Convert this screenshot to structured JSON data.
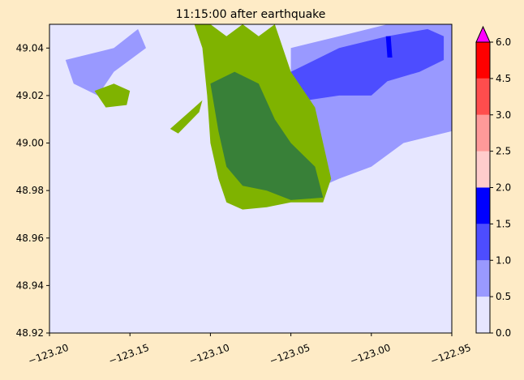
{
  "chart_data": {
    "type": "heatmap",
    "title": "11:15:00 after earthquake",
    "xlabel": "",
    "ylabel": "",
    "xlim": [
      -123.2,
      -122.95
    ],
    "ylim": [
      48.92,
      49.05
    ],
    "x_ticks": [
      -123.2,
      -123.15,
      -123.1,
      -123.05,
      -123.0,
      -122.95
    ],
    "x_tick_labels": [
      "−123.20",
      "−123.15",
      "−123.10",
      "−123.05",
      "−123.00",
      "−122.95"
    ],
    "y_ticks": [
      48.92,
      48.94,
      48.96,
      48.98,
      49.0,
      49.02,
      49.04
    ],
    "y_tick_labels": [
      "48.92",
      "48.94",
      "48.96",
      "48.98",
      "49.00",
      "49.02",
      "49.04"
    ],
    "grid": false,
    "background_color": "#e6e6ff",
    "land_colors": {
      "lowland": "#7fb300",
      "upland": "#388038"
    },
    "colorbar": {
      "levels": [
        0.0,
        0.5,
        1.0,
        1.5,
        2.0,
        2.5,
        3.0,
        4.5,
        6.0
      ],
      "level_labels": [
        "0.0",
        "0.5",
        "1.0",
        "1.5",
        "2.0",
        "2.5",
        "3.0",
        "4.5",
        "6.0"
      ],
      "colors": [
        "#e6e6ff",
        "#9999ff",
        "#4d4dff",
        "#0000ff",
        "#ffcccc",
        "#ff9999",
        "#ff4d4d",
        "#ff0000"
      ],
      "extend_max_color": "#ff00ff"
    },
    "regions": [
      {
        "name": "open-water-moderate",
        "level_index": 1,
        "polygon": [
          [
            -123.05,
            49.04
          ],
          [
            -123.02,
            49.045
          ],
          [
            -122.99,
            49.05
          ],
          [
            -122.95,
            49.05
          ],
          [
            -122.95,
            49.005
          ],
          [
            -122.98,
            49.0
          ],
          [
            -123.0,
            48.99
          ],
          [
            -123.02,
            48.985
          ],
          [
            -123.03,
            48.982
          ],
          [
            -123.04,
            49.0
          ],
          [
            -123.05,
            49.02
          ]
        ]
      },
      {
        "name": "bay-water-high",
        "level_index": 2,
        "polygon": [
          [
            -123.05,
            49.03
          ],
          [
            -123.02,
            49.04
          ],
          [
            -122.99,
            49.045
          ],
          [
            -122.965,
            49.048
          ],
          [
            -122.955,
            49.045
          ],
          [
            -122.955,
            49.035
          ],
          [
            -122.97,
            49.03
          ],
          [
            -122.99,
            49.026
          ],
          [
            -123.0,
            49.02
          ],
          [
            -123.02,
            49.02
          ],
          [
            -123.04,
            49.018
          ]
        ]
      },
      {
        "name": "channel-peak",
        "level_index": 3,
        "polygon": [
          [
            -122.991,
            49.045
          ],
          [
            -122.988,
            49.045
          ],
          [
            -122.987,
            49.036
          ],
          [
            -122.99,
            49.036
          ]
        ]
      },
      {
        "name": "northwest-water",
        "level_index": 1,
        "polygon": [
          [
            -123.19,
            49.035
          ],
          [
            -123.16,
            49.04
          ],
          [
            -123.145,
            49.048
          ],
          [
            -123.14,
            49.04
          ],
          [
            -123.16,
            49.03
          ],
          [
            -123.17,
            49.02
          ],
          [
            -123.185,
            49.025
          ]
        ]
      },
      {
        "name": "northwest-island",
        "level_index": -1,
        "land": "lowland",
        "polygon": [
          [
            -123.172,
            49.022
          ],
          [
            -123.16,
            49.025
          ],
          [
            -123.15,
            49.022
          ],
          [
            -123.152,
            49.016
          ],
          [
            -123.165,
            49.015
          ]
        ]
      },
      {
        "name": "peninsula-lowland",
        "level_index": -1,
        "land": "lowland",
        "polygon": [
          [
            -123.1,
            49.05
          ],
          [
            -123.09,
            49.045
          ],
          [
            -123.08,
            49.05
          ],
          [
            -123.07,
            49.045
          ],
          [
            -123.06,
            49.05
          ],
          [
            -123.05,
            49.03
          ],
          [
            -123.035,
            49.015
          ],
          [
            -123.03,
            49.0
          ],
          [
            -123.025,
            48.985
          ],
          [
            -123.03,
            48.975
          ],
          [
            -123.05,
            48.975
          ],
          [
            -123.065,
            48.973
          ],
          [
            -123.08,
            48.972
          ],
          [
            -123.09,
            48.975
          ],
          [
            -123.095,
            48.985
          ],
          [
            -123.1,
            49.0
          ],
          [
            -123.102,
            49.02
          ],
          [
            -123.105,
            49.04
          ],
          [
            -123.11,
            49.05
          ]
        ]
      },
      {
        "name": "peninsula-upland",
        "level_index": -1,
        "land": "upland",
        "polygon": [
          [
            -123.1,
            49.025
          ],
          [
            -123.085,
            49.03
          ],
          [
            -123.07,
            49.025
          ],
          [
            -123.06,
            49.01
          ],
          [
            -123.05,
            49.0
          ],
          [
            -123.035,
            48.99
          ],
          [
            -123.03,
            48.977
          ],
          [
            -123.05,
            48.976
          ],
          [
            -123.065,
            48.98
          ],
          [
            -123.08,
            48.982
          ],
          [
            -123.09,
            48.99
          ],
          [
            -123.095,
            49.005
          ]
        ]
      },
      {
        "name": "spit",
        "level_index": -1,
        "land": "lowland",
        "polygon": [
          [
            -123.125,
            49.006
          ],
          [
            -123.11,
            49.015
          ],
          [
            -123.105,
            49.018
          ],
          [
            -123.107,
            49.013
          ],
          [
            -123.12,
            49.004
          ]
        ]
      }
    ]
  }
}
